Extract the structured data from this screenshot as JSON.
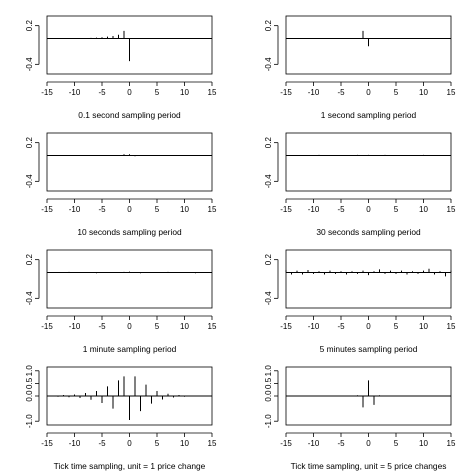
{
  "chart_data": [
    {
      "type": "bar",
      "caption": "0.1 second sampling period",
      "xlim": [
        -15,
        15
      ],
      "ylim": [
        -0.55,
        0.35
      ],
      "xticks": [
        "-15",
        "-10",
        "-5",
        "0",
        "5",
        "10",
        "15"
      ],
      "yticks": [
        "-0.4",
        "0.2"
      ],
      "ytick_values": [
        -0.4,
        0.2
      ],
      "baseline": 0,
      "lags": [
        -7,
        -6,
        -5,
        -4,
        -3,
        -2,
        -1,
        0
      ],
      "values": [
        0.01,
        0.015,
        0.02,
        0.03,
        0.04,
        0.06,
        0.12,
        -0.35
      ]
    },
    {
      "type": "bar",
      "caption": "1 second sampling period",
      "xlim": [
        -15,
        15
      ],
      "ylim": [
        -0.55,
        0.35
      ],
      "xticks": [
        "-15",
        "-10",
        "-5",
        "0",
        "5",
        "10",
        "15"
      ],
      "yticks": [
        "-0.4",
        "0.2"
      ],
      "ytick_values": [
        -0.4,
        0.2
      ],
      "baseline": 0,
      "lags": [
        -1,
        0
      ],
      "values": [
        0.12,
        -0.12
      ]
    },
    {
      "type": "bar",
      "caption": "10 seconds sampling period",
      "xlim": [
        -15,
        15
      ],
      "ylim": [
        -0.55,
        0.35
      ],
      "xticks": [
        "-15",
        "-10",
        "-5",
        "0",
        "5",
        "10",
        "15"
      ],
      "yticks": [
        "-0.4",
        "0.2"
      ],
      "ytick_values": [
        -0.4,
        0.2
      ],
      "baseline": 0,
      "lags": [
        -1,
        0,
        1
      ],
      "values": [
        0.02,
        0.02,
        -0.01
      ]
    },
    {
      "type": "bar",
      "caption": "30 seconds sampling period",
      "xlim": [
        -15,
        15
      ],
      "ylim": [
        -0.55,
        0.35
      ],
      "xticks": [
        "-15",
        "-10",
        "-5",
        "0",
        "5",
        "10",
        "15"
      ],
      "yticks": [
        "-0.4",
        "0.2"
      ],
      "ytick_values": [
        -0.4,
        0.2
      ],
      "baseline": 0,
      "lags": [
        -9,
        -2,
        0,
        3,
        10
      ],
      "values": [
        0.01,
        0.01,
        0.01,
        0.01,
        0.01
      ]
    },
    {
      "type": "bar",
      "caption": "1 minute sampling period",
      "xlim": [
        -15,
        15
      ],
      "ylim": [
        -0.55,
        0.35
      ],
      "xticks": [
        "-15",
        "-10",
        "-5",
        "0",
        "5",
        "10",
        "15"
      ],
      "yticks": [
        "-0.4",
        "0.2"
      ],
      "ytick_values": [
        -0.4,
        0.2
      ],
      "baseline": 0,
      "lags": [
        -11,
        -6,
        -1,
        0,
        2,
        7,
        12
      ],
      "values": [
        0.01,
        -0.01,
        0.01,
        0.015,
        -0.01,
        0.01,
        -0.01
      ]
    },
    {
      "type": "bar",
      "caption": "5 minutes sampling period",
      "xlim": [
        -15,
        15
      ],
      "ylim": [
        -0.55,
        0.35
      ],
      "xticks": [
        "-15",
        "-10",
        "-5",
        "0",
        "5",
        "10",
        "15"
      ],
      "yticks": [
        "-0.4",
        "0.2"
      ],
      "ytick_values": [
        -0.4,
        0.2
      ],
      "baseline": 0,
      "lags": [
        -15,
        -14,
        -13,
        -12,
        -11,
        -10,
        -9,
        -8,
        -7,
        -6,
        -5,
        -4,
        -3,
        -2,
        -1,
        0,
        1,
        2,
        3,
        4,
        5,
        6,
        7,
        8,
        9,
        10,
        11,
        12,
        13,
        14,
        15
      ],
      "values": [
        0.04,
        -0.03,
        0.03,
        -0.03,
        0.04,
        -0.02,
        0.02,
        -0.03,
        0.03,
        -0.02,
        0.02,
        -0.03,
        0.02,
        -0.02,
        0.03,
        -0.04,
        0.02,
        0.05,
        -0.02,
        0.03,
        -0.02,
        0.03,
        -0.03,
        0.02,
        -0.02,
        0.03,
        0.06,
        -0.03,
        0.02,
        -0.06,
        0.03
      ]
    },
    {
      "type": "bar",
      "caption": "Tick time sampling, unit = 1 price change",
      "xlim": [
        -15,
        15
      ],
      "ylim": [
        -1.15,
        1.15
      ],
      "xticks": [
        "-15",
        "-10",
        "-5",
        "0",
        "5",
        "10",
        "15"
      ],
      "yticks": [
        "-1.0",
        "0.0",
        "0.5",
        "1.0"
      ],
      "ytick_values": [
        -1.0,
        0.0,
        0.5,
        1.0
      ],
      "baseline": 0,
      "lags": [
        -14,
        -13,
        -12,
        -11,
        -10,
        -9,
        -8,
        -7,
        -6,
        -5,
        -4,
        -3,
        -2,
        -1,
        0,
        1,
        2,
        3,
        4,
        5,
        6,
        7,
        8,
        9,
        10,
        11,
        12,
        13,
        14
      ],
      "values": [
        0.02,
        -0.03,
        0.04,
        -0.05,
        0.06,
        -0.08,
        0.12,
        -0.15,
        0.2,
        -0.28,
        0.38,
        -0.5,
        0.62,
        0.78,
        -0.95,
        0.78,
        -0.6,
        0.45,
        -0.3,
        0.2,
        -0.14,
        0.09,
        -0.06,
        0.04,
        -0.03,
        0.02,
        -0.02,
        0.01,
        -0.01
      ]
    },
    {
      "type": "bar",
      "caption": "Tick time sampling, unit = 5 price changes",
      "xlim": [
        -15,
        15
      ],
      "ylim": [
        -1.15,
        1.15
      ],
      "xticks": [
        "-15",
        "-10",
        "-5",
        "0",
        "5",
        "10",
        "15"
      ],
      "yticks": [
        "-1.0",
        "0.0",
        "0.5",
        "1.0"
      ],
      "ytick_values": [
        -1.0,
        0.0,
        0.5,
        1.0
      ],
      "baseline": 0,
      "lags": [
        -2,
        -1,
        0,
        1,
        2
      ],
      "values": [
        0.03,
        -0.45,
        0.62,
        -0.35,
        0.03
      ]
    }
  ]
}
